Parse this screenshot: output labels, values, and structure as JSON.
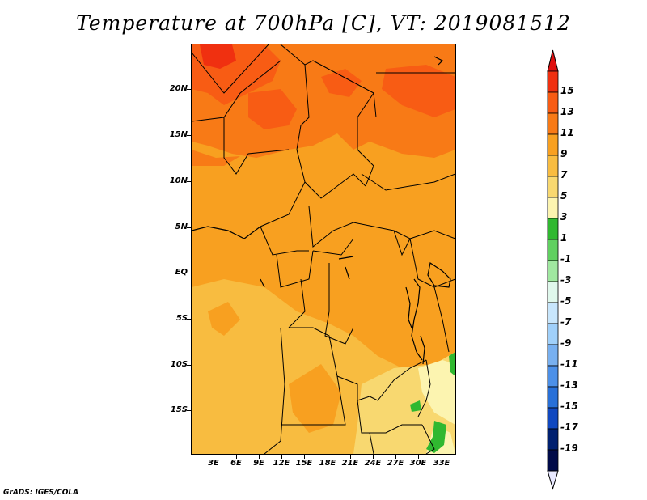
{
  "title": "Temperature at 700hPa [C], VT: 2019081512",
  "credit": "GrADS: IGES/COLA",
  "lat_labels": [
    "20N",
    "15N",
    "10N",
    "5N",
    "EQ",
    "5S",
    "10S",
    "15S"
  ],
  "lon_labels": [
    "3E",
    "6E",
    "9E",
    "12E",
    "15E",
    "18E",
    "21E",
    "24E",
    "27E",
    "30E",
    "33E"
  ],
  "colorbar": {
    "labels": [
      "15",
      "13",
      "11",
      "9",
      "7",
      "5",
      "3",
      "1",
      "-1",
      "-3",
      "-5",
      "-7",
      "-9",
      "-11",
      "-13",
      "-15",
      "-17",
      "-19"
    ],
    "colors": [
      "#f03010",
      "#f85c14",
      "#f87a16",
      "#f8a020",
      "#f8bc40",
      "#f8d870",
      "#fcf4b0",
      "#30b830",
      "#60d060",
      "#a0e8a0",
      "#e0f8ec",
      "#c8e6fc",
      "#a0d0fa",
      "#78b0f0",
      "#4c90e8",
      "#2870d8",
      "#1048c0",
      "#002070",
      "#000a48"
    ],
    "low_arrow_color": "#e8e8ff",
    "high_arrow_color": "#e01010"
  },
  "chart_data": {
    "type": "heatmap",
    "title": "Temperature at 700hPa [C], VT: 2019081512",
    "variable": "Temperature at 700hPa",
    "units": "C",
    "valid_time": "2019081512",
    "lon_range": [
      0,
      35
    ],
    "lat_range": [
      -20,
      24
    ],
    "regions": [
      {
        "area": "Sahara north of 15N",
        "value_range": [
          11,
          15
        ]
      },
      {
        "area": "Sahel / Nigeria / Chad 5N-15N",
        "value_range": [
          9,
          11
        ]
      },
      {
        "area": "Congo basin EQ-5N",
        "value_range": [
          9,
          11
        ]
      },
      {
        "area": "Angola / Zambia 5S-15S",
        "value_range": [
          7,
          9
        ]
      },
      {
        "area": "Mozambique / Malawi 10S-20S",
        "value_range": [
          3,
          7
        ]
      },
      {
        "area": "East African highlands and Mozambique patches",
        "value_range": [
          1,
          3
        ]
      }
    ]
  }
}
